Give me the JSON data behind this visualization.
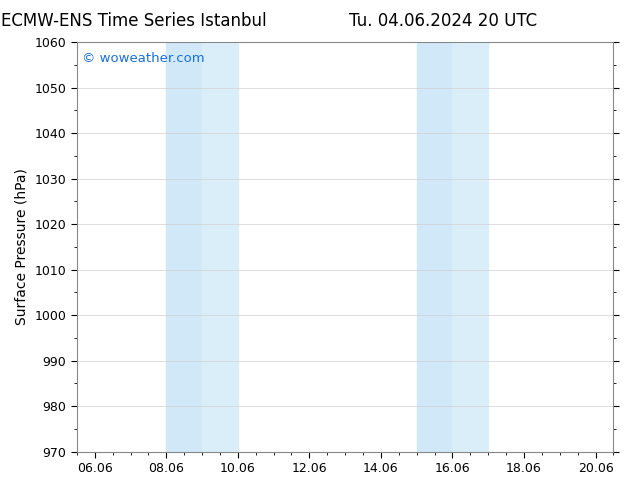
{
  "title_left": "ECMW-ENS Time Series Istanbul",
  "title_right": "Tu. 04.06.2024 20 UTC",
  "ylabel": "Surface Pressure (hPa)",
  "ylim": [
    970,
    1060
  ],
  "yticks": [
    970,
    980,
    990,
    1000,
    1010,
    1020,
    1030,
    1040,
    1050,
    1060
  ],
  "xtick_labels": [
    "06.06",
    "08.06",
    "10.06",
    "12.06",
    "14.06",
    "16.06",
    "18.06",
    "20.06"
  ],
  "xtick_positions": [
    0,
    2,
    4,
    6,
    8,
    10,
    12,
    14
  ],
  "xlim": [
    -0.5,
    14.5
  ],
  "shaded_bands": [
    {
      "x_start": 2.0,
      "x_end": 3.0,
      "color": "#d0e8f8"
    },
    {
      "x_start": 3.0,
      "x_end": 4.0,
      "color": "#daeefa"
    },
    {
      "x_start": 9.0,
      "x_end": 10.0,
      "color": "#d0e8f8"
    },
    {
      "x_start": 10.0,
      "x_end": 11.0,
      "color": "#daeefa"
    }
  ],
  "watermark_text": "© woweather.com",
  "watermark_color": "#1a6fd4",
  "background_color": "#ffffff",
  "plot_bg_color": "#ffffff",
  "grid_color": "#d0d0d0",
  "title_fontsize": 12,
  "tick_fontsize": 9,
  "ylabel_fontsize": 10,
  "minor_ticks_per_major": 4
}
